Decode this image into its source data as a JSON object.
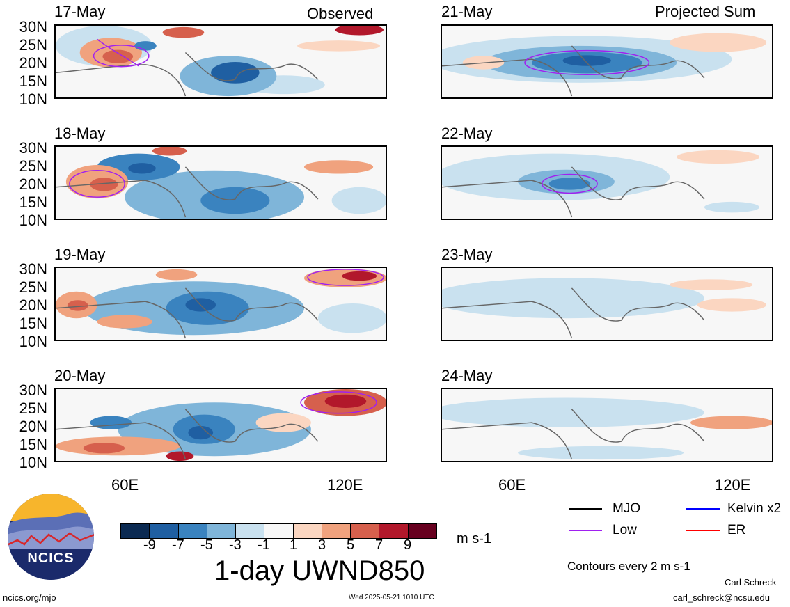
{
  "columns": {
    "left_header": "Observed",
    "right_header": "Projected Sum"
  },
  "panels": {
    "left": [
      "17-May",
      "18-May",
      "19-May",
      "20-May"
    ],
    "right": [
      "21-May",
      "22-May",
      "23-May",
      "24-May"
    ]
  },
  "lat_labels": [
    "30N",
    "25N",
    "20N",
    "15N",
    "10N"
  ],
  "lon_labels": [
    "60E",
    "120E"
  ],
  "colorbar": {
    "labels": [
      "-9",
      "-7",
      "-5",
      "-3",
      "-1",
      "1",
      "3",
      "5",
      "7",
      "9"
    ],
    "colors": [
      "#0b2a52",
      "#1f5fa2",
      "#3a83bf",
      "#7fb5d9",
      "#c9e1ef",
      "#f7f7f7",
      "#fbd6c1",
      "#f0a27e",
      "#d6604d",
      "#b2182b",
      "#67001f"
    ],
    "units": "m s-1",
    "title": "1-day UWND850"
  },
  "legend": {
    "items": [
      {
        "label": "MJO",
        "color": "#000000"
      },
      {
        "label": "Kelvin x2",
        "color": "#0000ff"
      },
      {
        "label": "Low",
        "color": "#a020f0"
      },
      {
        "label": "ER",
        "color": "#ff0000"
      }
    ],
    "contour_note": "Contours every 2 m s-1"
  },
  "logo": {
    "text": "NCICS"
  },
  "footer": {
    "url": "ncics.org/mjo",
    "timestamp": "Wed 2025-05-21 1010 UTC",
    "author": "Carl Schreck",
    "email": "carl_schreck@ncsu.edu"
  }
}
